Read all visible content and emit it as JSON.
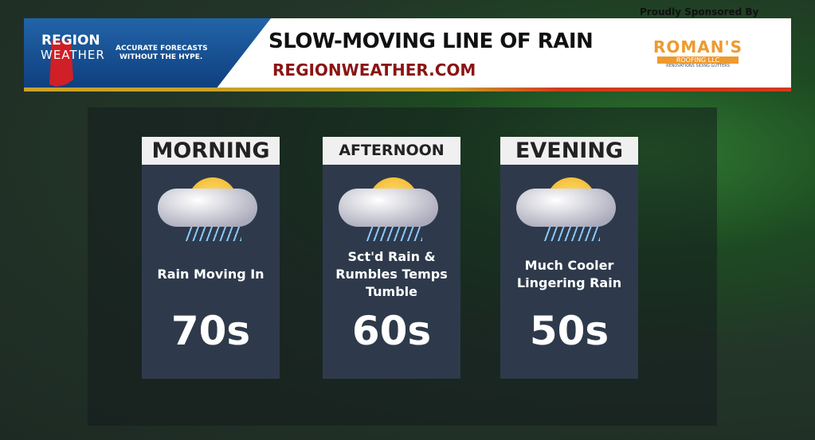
{
  "header": {
    "logo_line1": "REGION",
    "logo_line2": "WEATHER",
    "tagline_1": "ACCURATE FORECASTS",
    "tagline_2": "WITHOUT THE HYPE.",
    "title": "SLOW-MOVING LINE OF RAIN",
    "url": "REGIONWEATHER.COM"
  },
  "sponsor": {
    "label": "Proudly Sponsored By",
    "name": "ROMAN'S",
    "sub": "ROOFING LLC",
    "tag": "RENOVATIONS SIDING GUTTERS"
  },
  "periods": [
    {
      "label": "MORNING",
      "icon": "partly-cloudy-rain-icon",
      "desc": "Rain Moving In",
      "temp": "70s"
    },
    {
      "label": "AFTERNOON",
      "icon": "thunderstorm-rain-icon",
      "desc": "Sct'd Rain & Rumbles Temps Tumble",
      "temp": "60s"
    },
    {
      "label": "EVENING",
      "icon": "partly-cloudy-rain-icon",
      "desc": "Much Cooler Lingering Rain",
      "temp": "50s"
    }
  ]
}
